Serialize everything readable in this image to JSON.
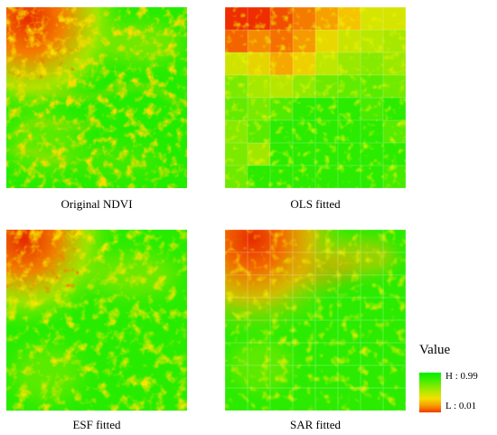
{
  "panels": {
    "original": {
      "caption": "Original NDVI"
    },
    "ols": {
      "caption": "OLS fitted"
    },
    "esf": {
      "caption": "ESF fitted"
    },
    "sar": {
      "caption": "SAR fitted"
    }
  },
  "legend": {
    "title": "Value",
    "high_label": "H : 0.99",
    "low_label": "L : 0.01",
    "high_color": "#00f000",
    "mid_color": "#f3e000",
    "low_color": "#ee3a00"
  }
}
